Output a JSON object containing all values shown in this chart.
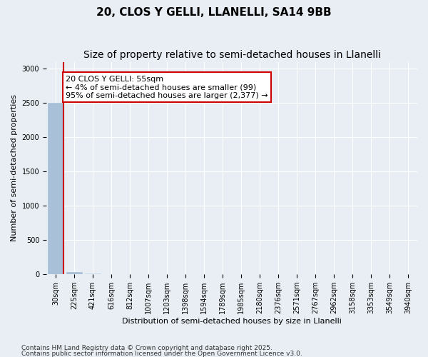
{
  "title": "20, CLOS Y GELLI, LLANELLI, SA14 9BB",
  "subtitle": "Size of property relative to semi-detached houses in Llanelli",
  "xlabel": "Distribution of semi-detached houses by size in Llanelli",
  "ylabel": "Number of semi-detached properties",
  "bar_values": [
    2500,
    30,
    10,
    5,
    3,
    2,
    1,
    1,
    1,
    1,
    1,
    0,
    0,
    0,
    0,
    0,
    0,
    0,
    0,
    0
  ],
  "bar_labels": [
    "30sqm",
    "225sqm",
    "421sqm",
    "616sqm",
    "812sqm",
    "1007sqm",
    "1203sqm",
    "1398sqm",
    "1594sqm",
    "1789sqm",
    "1985sqm",
    "2180sqm",
    "2376sqm",
    "2571sqm",
    "2767sqm",
    "2962sqm",
    "3158sqm",
    "3353sqm",
    "3549sqm",
    "3940sqm"
  ],
  "highlight_indices": [
    0,
    1
  ],
  "bar_color_normal": "#c8d8e8",
  "bar_color_highlight": "#a8c0d8",
  "annotation_text": "20 CLOS Y GELLI: 55sqm\n← 4% of semi-detached houses are smaller (99)\n95% of semi-detached houses are larger (2,377) →",
  "annotation_box_color": "#ffffff",
  "annotation_box_edge": "#cc0000",
  "property_line_color": "#cc0000",
  "ylim": [
    0,
    3100
  ],
  "yticks": [
    0,
    500,
    1000,
    1500,
    2000,
    2500,
    3000
  ],
  "footnote1": "Contains HM Land Registry data © Crown copyright and database right 2025.",
  "footnote2": "Contains public sector information licensed under the Open Government Licence v3.0.",
  "bg_color": "#e8eef4",
  "grid_color": "#ffffff",
  "title_fontsize": 11,
  "subtitle_fontsize": 10,
  "label_fontsize": 8,
  "tick_fontsize": 7,
  "annot_fontsize": 8
}
